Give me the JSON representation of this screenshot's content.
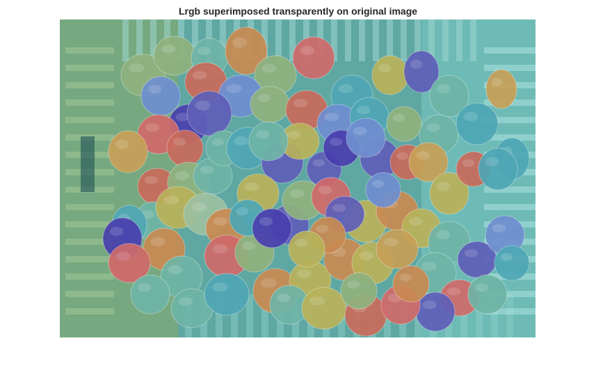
{
  "figure": {
    "title": "Lrgb superimposed transparently on original image",
    "description": "Segmentation label overlay: colored regions on tomatoes in a crate"
  },
  "palette": {
    "background_teal": "#5fa7a2",
    "crate_green": "#7ba97a",
    "crate_cyan": "#7fd3cf",
    "shadow": "#2e5f5d",
    "overlay_colors": [
      "#c96b5c",
      "#c98a52",
      "#b8b25a",
      "#8fb27e",
      "#6fb5a6",
      "#4fa7b5",
      "#6f8fd0",
      "#5f5fb8",
      "#4a3fae",
      "#d06a6a",
      "#c7a057",
      "#9dc0a0"
    ]
  }
}
